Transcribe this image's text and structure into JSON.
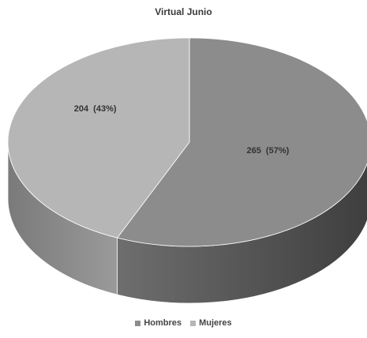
{
  "chart_data": {
    "type": "pie",
    "title": "Virtual Junio",
    "categories": [
      "Hombres",
      "Mujeres"
    ],
    "values": [
      265,
      204
    ],
    "percent": [
      57,
      43
    ],
    "data_labels": [
      "265  (57%)",
      "204  (43%)"
    ],
    "colors": {
      "Hombres": "#8c8c8c",
      "Mujeres": "#b6b6b6"
    },
    "legend": "bottom",
    "style": "3d"
  }
}
